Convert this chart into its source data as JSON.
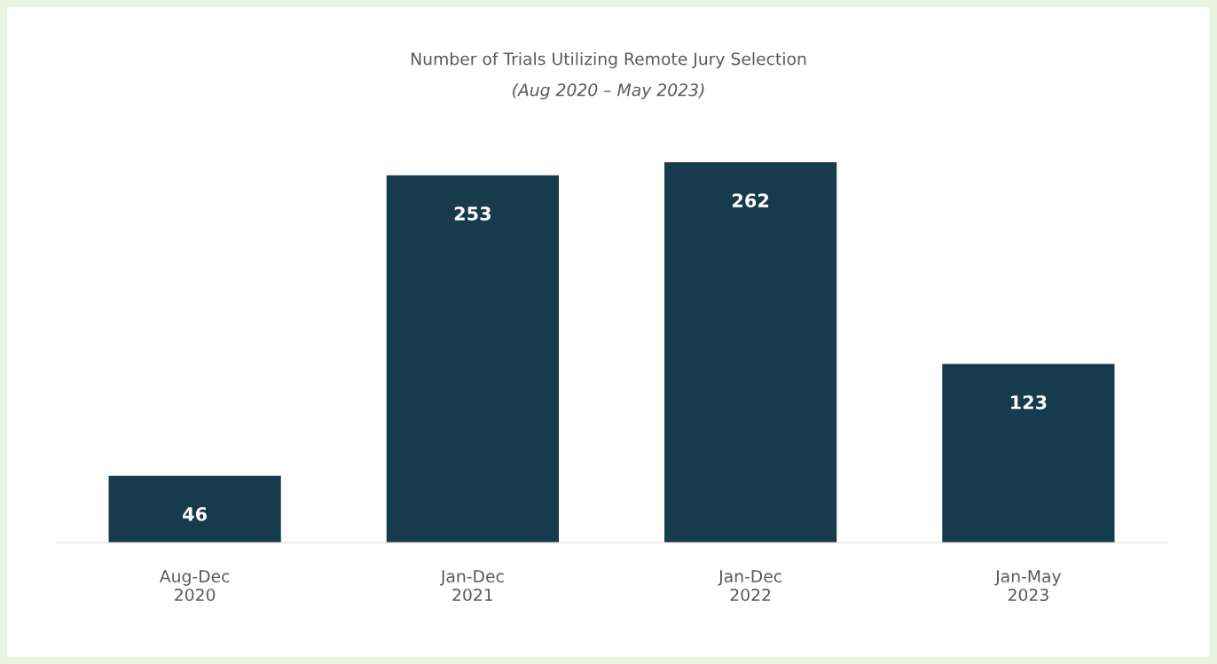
{
  "chart_data": {
    "type": "bar",
    "title": "Number of Trials Utilizing Remote Jury Selection",
    "subtitle": "(Aug 2020 – May 2023)",
    "categories": [
      "Aug-Dec\n2020",
      "Jan-Dec\n2021",
      "Jan-Dec\n2022",
      "Jan-May\n2023"
    ],
    "values": [
      46,
      253,
      262,
      123
    ],
    "color": "#163b4c",
    "data_labels": true,
    "grid": false,
    "legend": false
  }
}
